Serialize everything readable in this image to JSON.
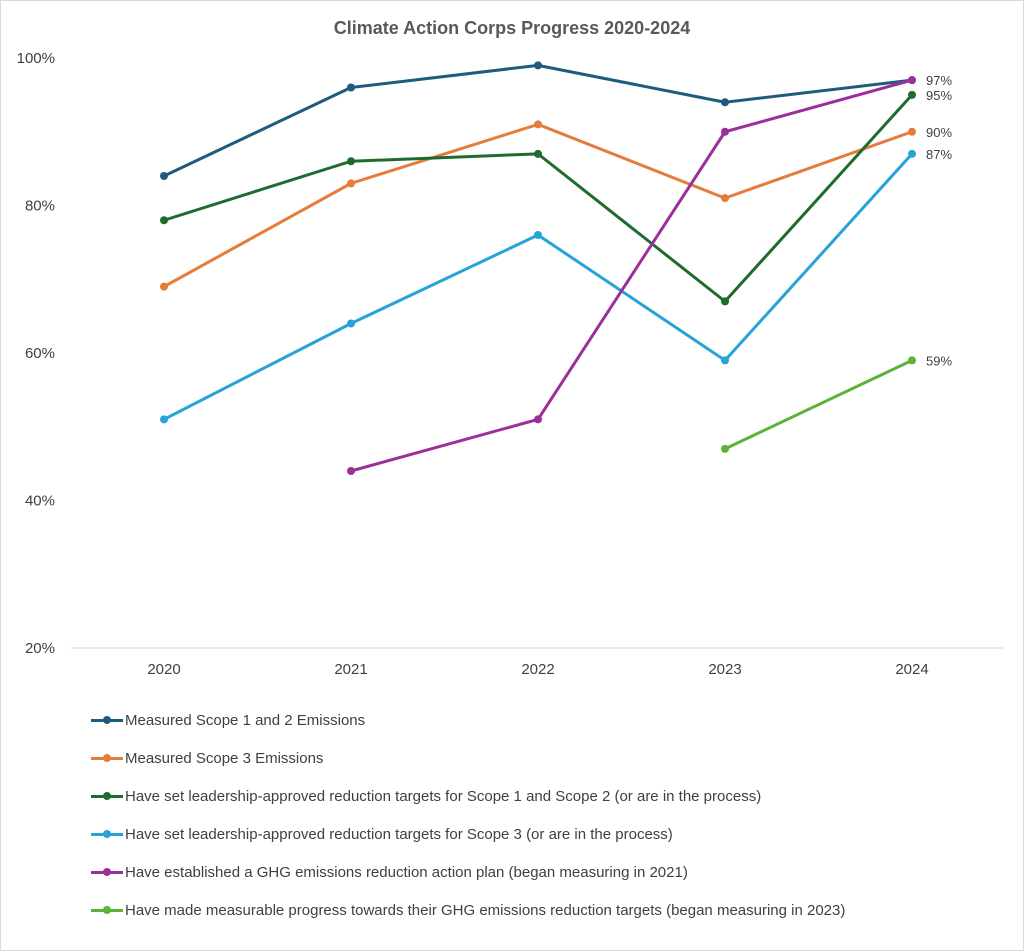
{
  "chart_data": {
    "type": "line",
    "title": "Climate Action Corps Progress 2020-2024",
    "xlabel": "",
    "ylabel": "",
    "categories": [
      "2020",
      "2021",
      "2022",
      "2023",
      "2024"
    ],
    "ylim": [
      20,
      100
    ],
    "yticks": [
      20,
      40,
      60,
      80,
      100
    ],
    "ytick_labels": [
      "20%",
      "40%",
      "60%",
      "80%",
      "100%"
    ],
    "grid": false,
    "legend_position": "bottom",
    "series": [
      {
        "name": "Measured Scope 1 and 2 Emissions",
        "color": "#1f5b7e",
        "values": [
          84,
          96,
          99,
          94,
          97
        ],
        "end_label": ""
      },
      {
        "name": "Measured Scope 3 Emissions",
        "color": "#e67c3a",
        "values": [
          69,
          83,
          91,
          81,
          90
        ],
        "end_label": "90%"
      },
      {
        "name": "Have set leadership-approved reduction targets for Scope 1 and Scope 2 (or are in the process)",
        "color": "#1e6b2e",
        "values": [
          78,
          86,
          87,
          67,
          95
        ],
        "end_label": "95%"
      },
      {
        "name": "Have set leadership-approved reduction targets for Scope 3 (or are in the process)",
        "color": "#27a3d9",
        "values": [
          51,
          64,
          76,
          59,
          87
        ],
        "end_label": "87%"
      },
      {
        "name": "Have established a GHG emissions reduction action plan (began measuring in 2021)",
        "color": "#9b2f9b",
        "values": [
          null,
          44,
          51,
          90,
          97
        ],
        "end_label": "97%"
      },
      {
        "name": "Have made measurable progress towards their GHG emissions reduction targets (began measuring in 2023)",
        "color": "#5ab336",
        "values": [
          null,
          null,
          null,
          47,
          59
        ],
        "end_label": "59%"
      }
    ]
  }
}
